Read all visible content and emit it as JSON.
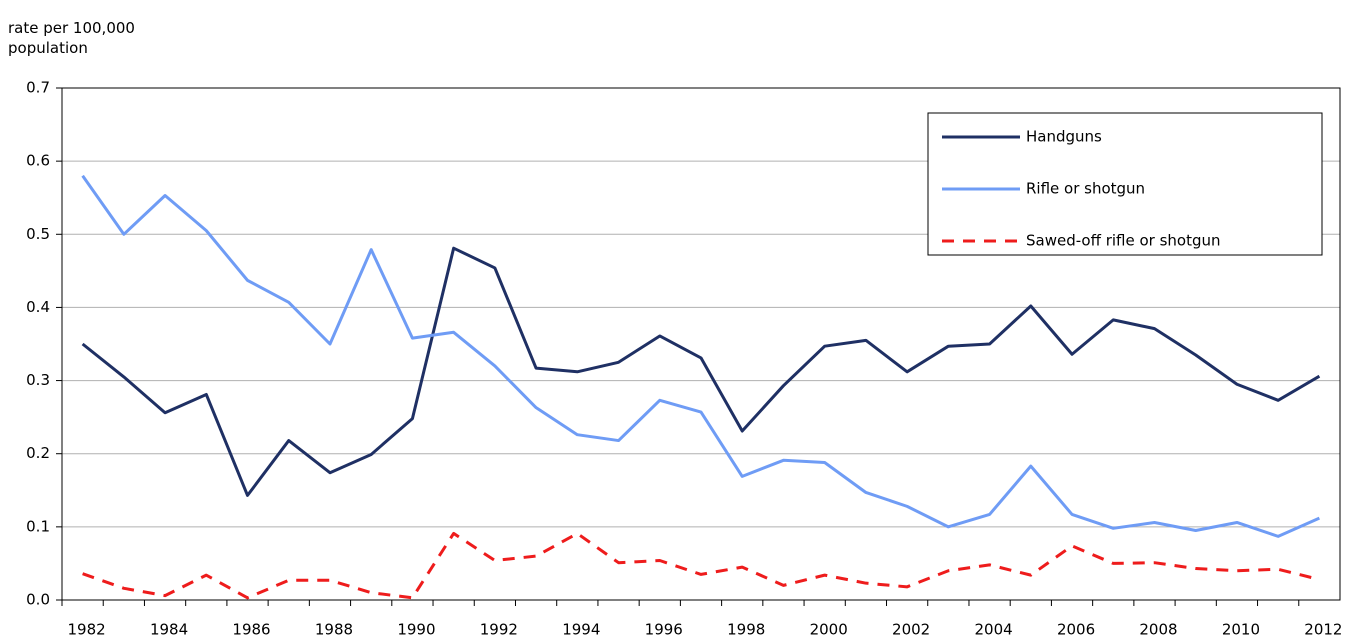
{
  "chart_data": {
    "type": "line",
    "y_label": "rate per 100,000 population",
    "categories": [
      "1982",
      null,
      "1984",
      null,
      "1986",
      null,
      "1988",
      null,
      "1990",
      null,
      "1992",
      null,
      "1994",
      null,
      "1996",
      null,
      "1998",
      null,
      "2000",
      null,
      "2002",
      null,
      "2004",
      null,
      "2006",
      null,
      "2008",
      null,
      "2010",
      null,
      "2012"
    ],
    "series": [
      {
        "name": "Handguns",
        "color": "#1f3064",
        "dash": false,
        "values": [
          0.35,
          0.305,
          0.256,
          0.281,
          0.143,
          0.218,
          0.174,
          0.199,
          0.248,
          0.481,
          0.454,
          0.317,
          0.312,
          0.325,
          0.361,
          0.331,
          0.231,
          0.293,
          0.347,
          0.355,
          0.312,
          0.347,
          0.35,
          0.402,
          0.336,
          0.383,
          0.371,
          0.335,
          0.295,
          0.273,
          0.306
        ]
      },
      {
        "name": "Rifle or shotgun",
        "color": "#6f9cf5",
        "dash": false,
        "values": [
          0.58,
          0.5,
          0.553,
          0.505,
          0.437,
          0.407,
          0.35,
          0.479,
          0.358,
          0.366,
          0.32,
          0.263,
          0.226,
          0.218,
          0.273,
          0.257,
          0.169,
          0.191,
          0.188,
          0.147,
          0.128,
          0.1,
          0.117,
          0.183,
          0.117,
          0.098,
          0.106,
          0.095,
          0.106,
          0.087,
          0.112
        ]
      },
      {
        "name": "Sawed-off rifle or shotgun",
        "color": "#ee1c1c",
        "dash": true,
        "values": [
          0.036,
          0.016,
          0.006,
          0.034,
          0.003,
          0.027,
          0.027,
          0.01,
          0.003,
          0.091,
          0.054,
          0.06,
          0.091,
          0.051,
          0.054,
          0.035,
          0.045,
          0.02,
          0.034,
          0.023,
          0.018,
          0.04,
          0.048,
          0.034,
          0.074,
          0.05,
          0.051,
          0.043,
          0.04,
          0.042,
          0.028
        ]
      }
    ],
    "ylim": [
      0,
      0.7
    ],
    "yticks": [
      {
        "value": 0,
        "label": "0.0"
      },
      0.1,
      0.2,
      0.3,
      0.4,
      0.5,
      0.6,
      0.7
    ],
    "grid": true,
    "legend": "upper right"
  }
}
